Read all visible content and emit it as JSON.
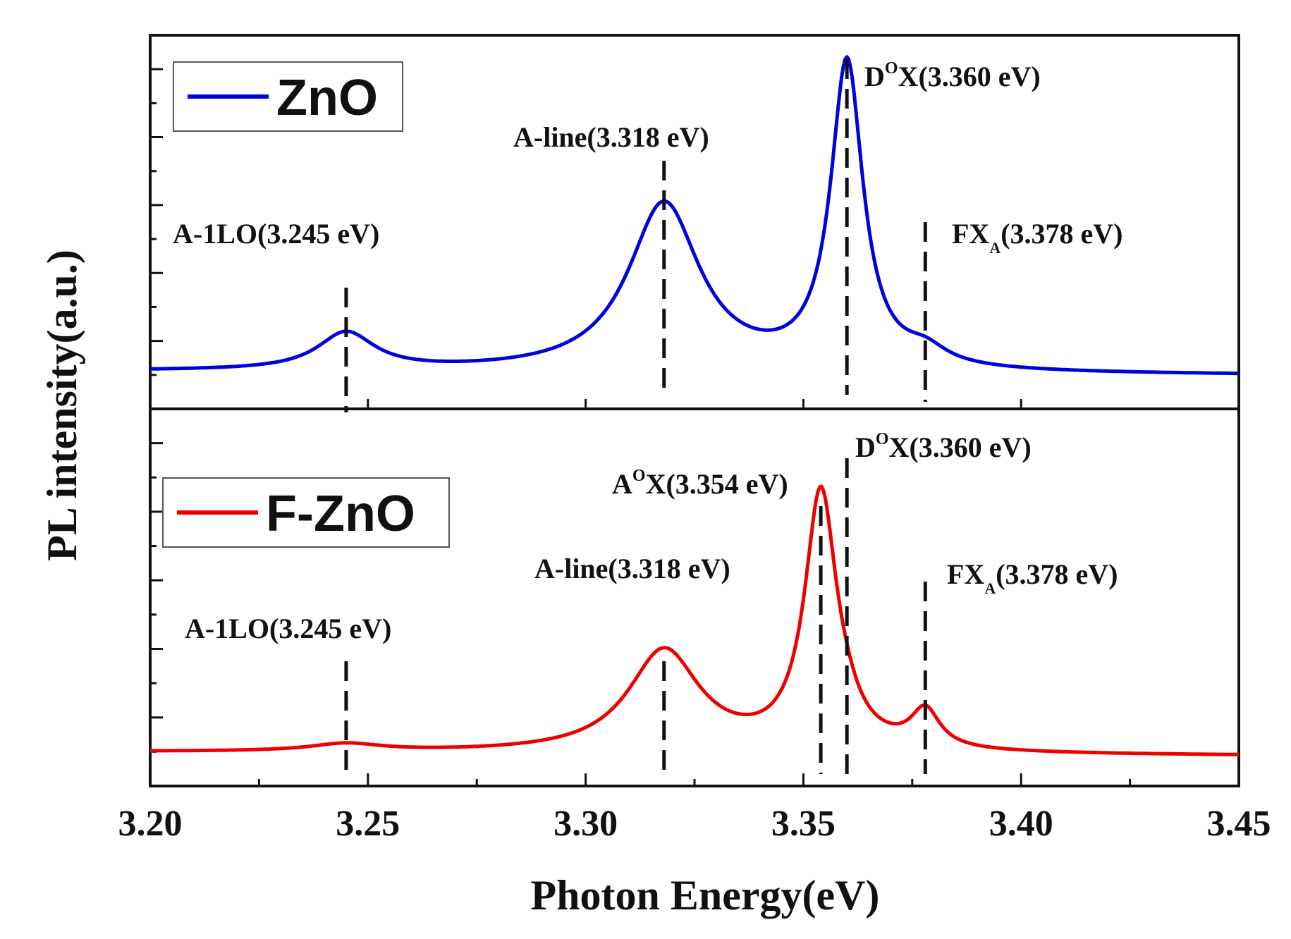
{
  "chart_data": {
    "type": "line",
    "xlabel": "Photon Energy(eV)",
    "ylabel": "PL intensity(a.u.)",
    "xlim": [
      3.2,
      3.45
    ],
    "xticks": [
      "3.20",
      "3.25",
      "3.30",
      "3.35",
      "3.40",
      "3.45"
    ],
    "colors": {
      "ZnO": "#0000dd",
      "F-ZnO": "#ee0000"
    },
    "panels": [
      {
        "name": "ZnO",
        "legend": "ZnO",
        "color": "#0000dd",
        "baseline": 0.06,
        "peaks": [
          {
            "energy": 3.245,
            "height": 0.1,
            "width": 0.008
          },
          {
            "energy": 3.318,
            "height": 0.45,
            "width": 0.01
          },
          {
            "energy": 3.36,
            "height": 0.82,
            "width": 0.0045
          },
          {
            "energy": 3.378,
            "height": 0.04,
            "width": 0.006
          }
        ],
        "annotations": [
          {
            "energy": 3.245,
            "main": "A-1LO(3.245 eV)",
            "sup": "",
            "sub": "",
            "tail": ""
          },
          {
            "energy": 3.318,
            "main": "A-line(3.318 eV)",
            "sup": "",
            "sub": "",
            "tail": ""
          },
          {
            "energy": 3.36,
            "main": "D",
            "sup": "O",
            "sub": "",
            "tail": "X(3.360 eV)"
          },
          {
            "energy": 3.378,
            "main": "FX",
            "sup": "",
            "sub": "A",
            "tail": "(3.378 eV)"
          }
        ]
      },
      {
        "name": "F-ZnO",
        "legend": "F-ZnO",
        "color": "#ee0000",
        "baseline": 0.05,
        "peaks": [
          {
            "energy": 3.245,
            "height": 0.02,
            "width": 0.01
          },
          {
            "energy": 3.318,
            "height": 0.27,
            "width": 0.01
          },
          {
            "energy": 3.354,
            "height": 0.68,
            "width": 0.0045
          },
          {
            "energy": 3.36,
            "height": 0.03,
            "width": 0.004
          },
          {
            "energy": 3.378,
            "height": 0.1,
            "width": 0.004
          }
        ],
        "annotations": [
          {
            "energy": 3.245,
            "main": "A-1LO(3.245 eV)",
            "sup": "",
            "sub": "",
            "tail": ""
          },
          {
            "energy": 3.318,
            "main": "A-line(3.318 eV)",
            "sup": "",
            "sub": "",
            "tail": ""
          },
          {
            "energy": 3.354,
            "main": "A",
            "sup": "O",
            "sub": "",
            "tail": "X(3.354 eV)"
          },
          {
            "energy": 3.36,
            "main": "D",
            "sup": "O",
            "sub": "",
            "tail": "X(3.360 eV)"
          },
          {
            "energy": 3.378,
            "main": "FX",
            "sup": "",
            "sub": "A",
            "tail": "(3.378 eV)"
          }
        ]
      }
    ]
  }
}
